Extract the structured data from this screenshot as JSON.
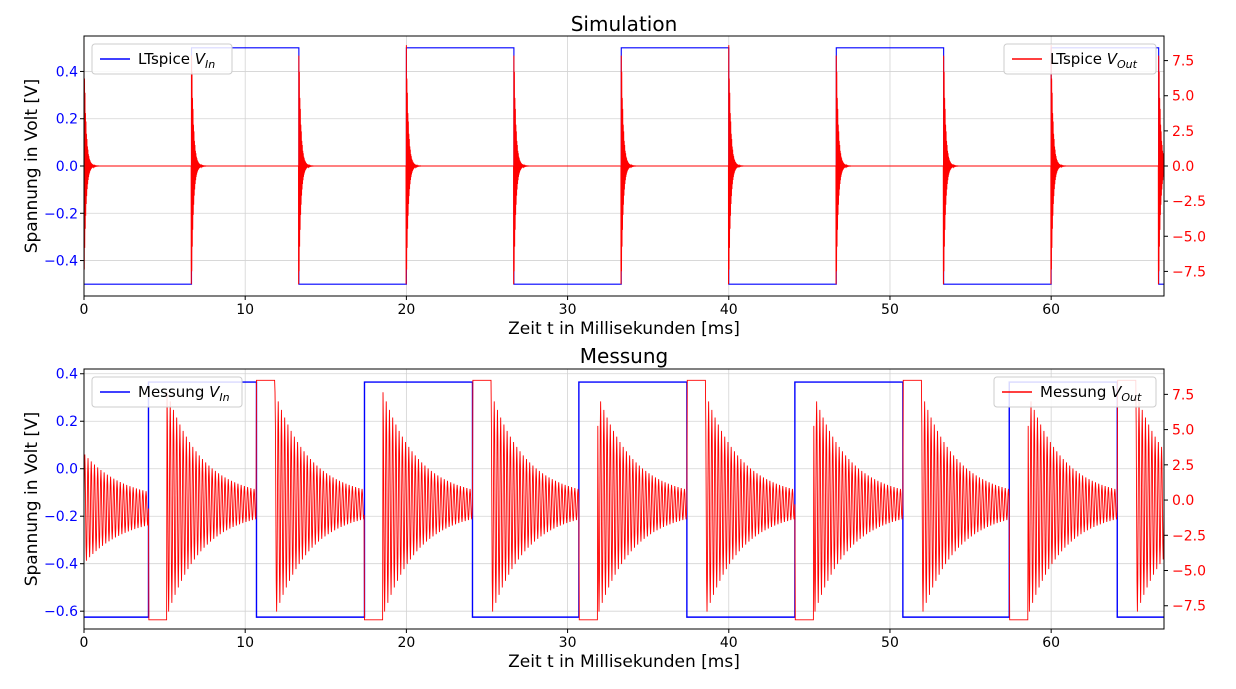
{
  "colors": {
    "vin": "#0000ff",
    "vout": "#ff0000",
    "grid": "#d3d3d3",
    "axes": "#000000"
  },
  "chart_data": [
    {
      "type": "line",
      "title": "Simulation",
      "xlabel": "Zeit t in Millisekunden [ms]",
      "ylabel": "Spannung in Volt [V]",
      "xlim": [
        0,
        67
      ],
      "x_ticks": [
        0,
        10,
        20,
        30,
        40,
        50,
        60
      ],
      "left_ylim": [
        -0.55,
        0.55
      ],
      "left_ticks": [
        "-0.4",
        "-0.2",
        "0.0",
        "0.2",
        "0.4"
      ],
      "right_ylim": [
        -9.25,
        9.25
      ],
      "right_ticks": [
        "-7.5",
        "-5.0",
        "-2.5",
        "0.0",
        "2.5",
        "5.0",
        "7.5"
      ],
      "grid": true,
      "series": [
        {
          "name": "LTspice V_In",
          "legend_main": "LTspice ",
          "legend_var": "V",
          "legend_sub": "In",
          "legend_position": "top-left",
          "axis": "left",
          "waveform": "square",
          "low": -0.5,
          "high": 0.5,
          "edges": [
            6.67,
            13.33,
            20.0,
            26.67,
            33.33,
            40.0,
            46.67,
            53.33,
            60.0,
            66.67
          ],
          "start_level": "low"
        },
        {
          "name": "LTspice V_Out",
          "legend_main": "LTspice ",
          "legend_var": "V",
          "legend_sub": "Out",
          "legend_position": "top-right",
          "axis": "right",
          "waveform": "spike",
          "baseline": 0.0,
          "spike_amplitude": 8.6,
          "decay_ms": 0.12,
          "spikes": [
            0.0,
            6.67,
            13.33,
            20.0,
            26.67,
            33.33,
            40.0,
            46.67,
            53.33,
            60.0,
            66.67
          ]
        }
      ]
    },
    {
      "type": "line",
      "title": "Messung",
      "xlabel": "Zeit t in Millisekunden [ms]",
      "ylabel": "Spannung in Volt [V]",
      "xlim": [
        0,
        67
      ],
      "x_ticks": [
        0,
        10,
        20,
        30,
        40,
        50,
        60
      ],
      "left_ylim": [
        -0.675,
        0.42
      ],
      "left_ticks": [
        "-0.6",
        "-0.4",
        "-0.2",
        "0.0",
        "0.2",
        "0.4"
      ],
      "right_ylim": [
        -9.15,
        9.3
      ],
      "right_ticks": [
        "-7.5",
        "-5.0",
        "-2.5",
        "0.0",
        "2.5",
        "5.0",
        "7.5"
      ],
      "grid": true,
      "series": [
        {
          "name": "Messung V_In",
          "legend_main": "Messung ",
          "legend_var": "V",
          "legend_sub": "In",
          "legend_position": "top-left",
          "axis": "left",
          "waveform": "square",
          "low": -0.625,
          "high": 0.365,
          "edges": [
            4.0,
            10.7,
            17.4,
            24.1,
            30.7,
            37.4,
            44.1,
            50.8,
            57.4,
            64.1
          ],
          "start_level": "low"
        },
        {
          "name": "Messung V_Out",
          "legend_main": "Messung ",
          "legend_var": "V",
          "legend_sub": "Out",
          "legend_position": "top-right",
          "axis": "right",
          "waveform": "ringing",
          "baseline": 0.0,
          "initial_amplitude": 3.4,
          "initial_decay_ms": 2.5,
          "sag_level": -8.5,
          "peak_level": 8.5,
          "ring_peak": 7.5,
          "ring_decay_ms": 2.2,
          "ring_period_ms": 0.2,
          "events": [
            {
              "start": 4.0,
              "end": 5.15,
              "kind": "neg"
            },
            {
              "start": 10.7,
              "end": 11.85,
              "kind": "pos"
            },
            {
              "start": 17.4,
              "end": 18.55,
              "kind": "neg"
            },
            {
              "start": 24.1,
              "end": 25.25,
              "kind": "pos"
            },
            {
              "start": 30.7,
              "end": 31.85,
              "kind": "neg"
            },
            {
              "start": 37.4,
              "end": 38.55,
              "kind": "pos"
            },
            {
              "start": 44.1,
              "end": 45.25,
              "kind": "neg"
            },
            {
              "start": 50.8,
              "end": 51.95,
              "kind": "pos"
            },
            {
              "start": 57.4,
              "end": 58.55,
              "kind": "neg"
            },
            {
              "start": 64.1,
              "end": 65.25,
              "kind": "pos"
            }
          ]
        }
      ]
    }
  ]
}
